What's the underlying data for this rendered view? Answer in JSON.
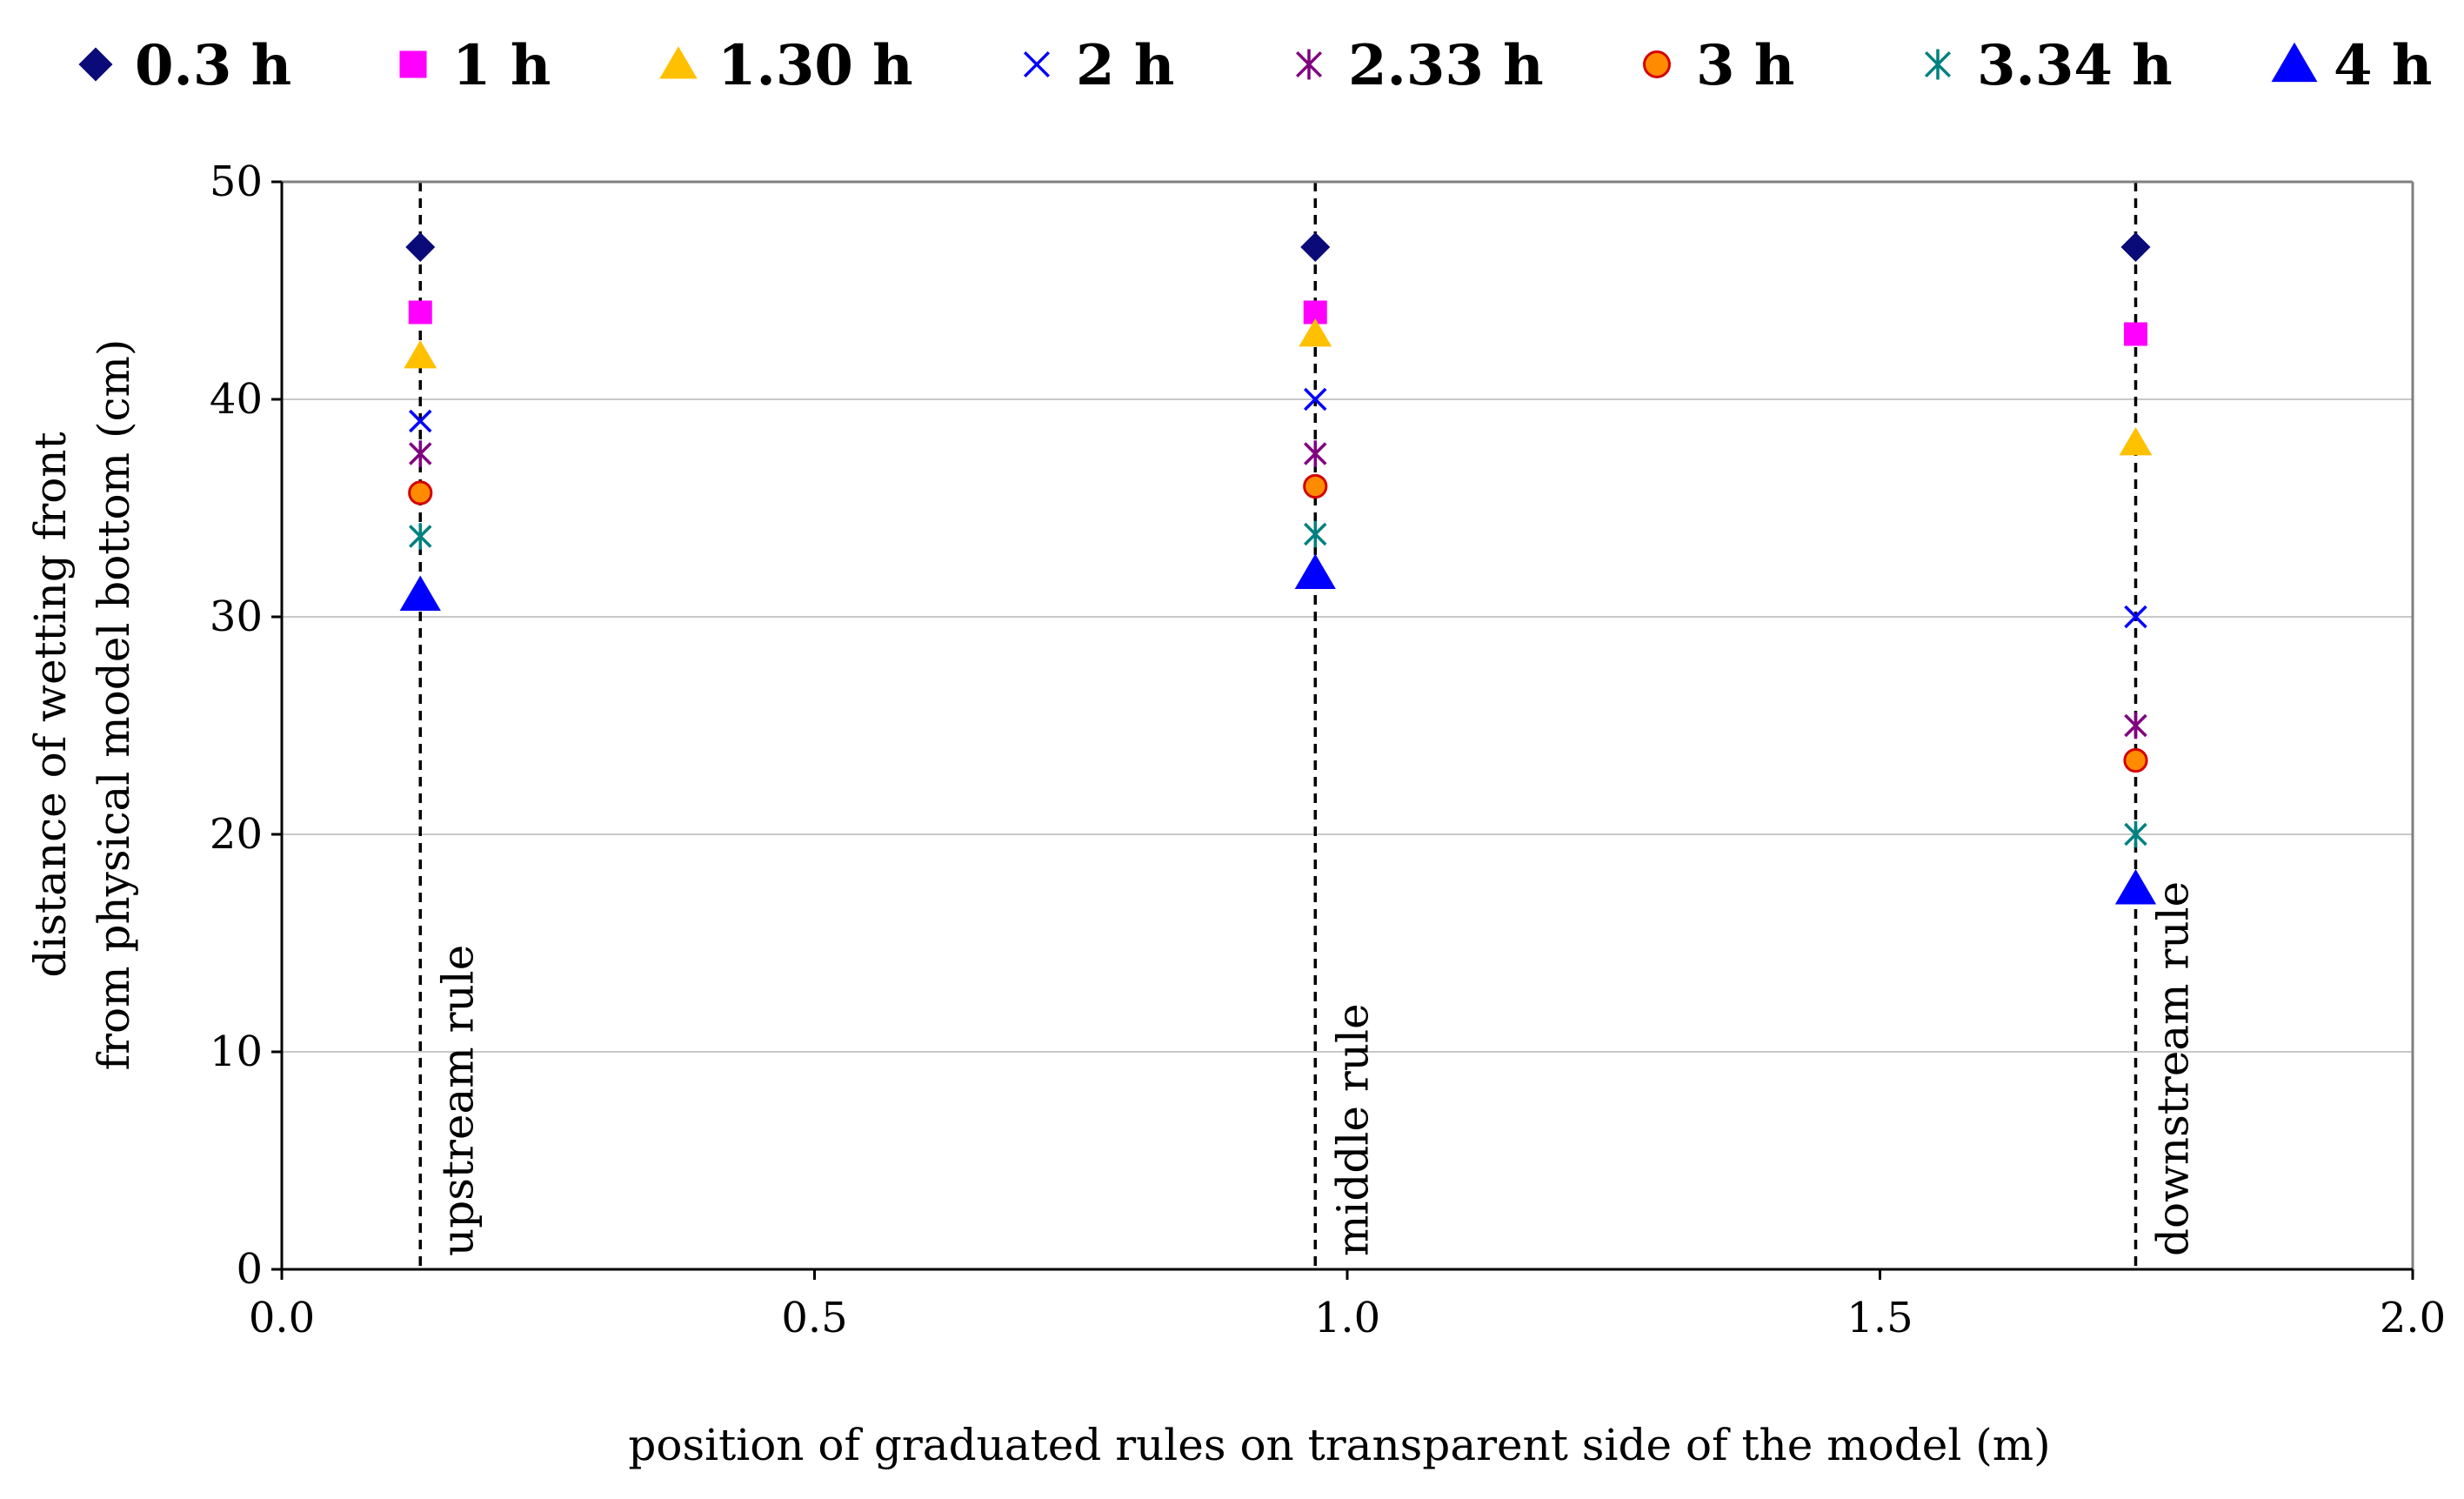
{
  "chart_data": {
    "type": "scatter",
    "title": "",
    "xlabel": "position of graduated rules on transparent side of the model (m)",
    "ylabel_lines": [
      "distance of wetting front",
      "from physical model bottom  (cm)"
    ],
    "xlim": [
      0.0,
      2.0
    ],
    "ylim": [
      0,
      50
    ],
    "x_ticks": [
      "0.0",
      "0.5",
      "1.0",
      "1.5",
      "2.0"
    ],
    "y_ticks": [
      "0",
      "10",
      "20",
      "30",
      "40",
      "50"
    ],
    "grid": "horizontal",
    "legend_position": "top",
    "rules": [
      {
        "x": 0.13,
        "label": "upstream rule"
      },
      {
        "x": 0.97,
        "label": "middle rule"
      },
      {
        "x": 1.74,
        "label": "downstream rule"
      }
    ],
    "series": [
      {
        "name": "0.3 h",
        "marker": "diamond",
        "color": "#0a0a78",
        "x": [
          0.13,
          0.97,
          1.74
        ],
        "values": [
          47,
          47,
          47
        ]
      },
      {
        "name": "1 h",
        "marker": "square",
        "color": "#ff00ff",
        "x": [
          0.13,
          0.97,
          1.74
        ],
        "values": [
          44,
          44,
          43
        ]
      },
      {
        "name": "1.30 h",
        "marker": "triangle",
        "color": "#ffc000",
        "x": [
          0.13,
          0.97,
          1.74
        ],
        "values": [
          42,
          43,
          38
        ]
      },
      {
        "name": "2 h",
        "marker": "x",
        "color": "#0000ff",
        "x": [
          0.13,
          0.97,
          1.74
        ],
        "values": [
          39,
          40,
          30
        ]
      },
      {
        "name": "2.33 h",
        "marker": "star",
        "color": "#800080",
        "x": [
          0.13,
          0.97,
          1.74
        ],
        "values": [
          37.5,
          37.5,
          25
        ]
      },
      {
        "name": "3 h",
        "marker": "circle",
        "color": "#ff8c00",
        "edge": "#d40000",
        "x": [
          0.13,
          0.97,
          1.74
        ],
        "values": [
          35.7,
          36,
          23.4
        ]
      },
      {
        "name": "3.34 h",
        "marker": "star",
        "color": "#008080",
        "x": [
          0.13,
          0.97,
          1.74
        ],
        "values": [
          33.7,
          33.8,
          20
        ]
      },
      {
        "name": "4 h",
        "marker": "triangle",
        "color": "#0000ff",
        "x": [
          0.13,
          0.97,
          1.74
        ],
        "values": [
          31,
          32,
          17.5
        ]
      }
    ]
  }
}
